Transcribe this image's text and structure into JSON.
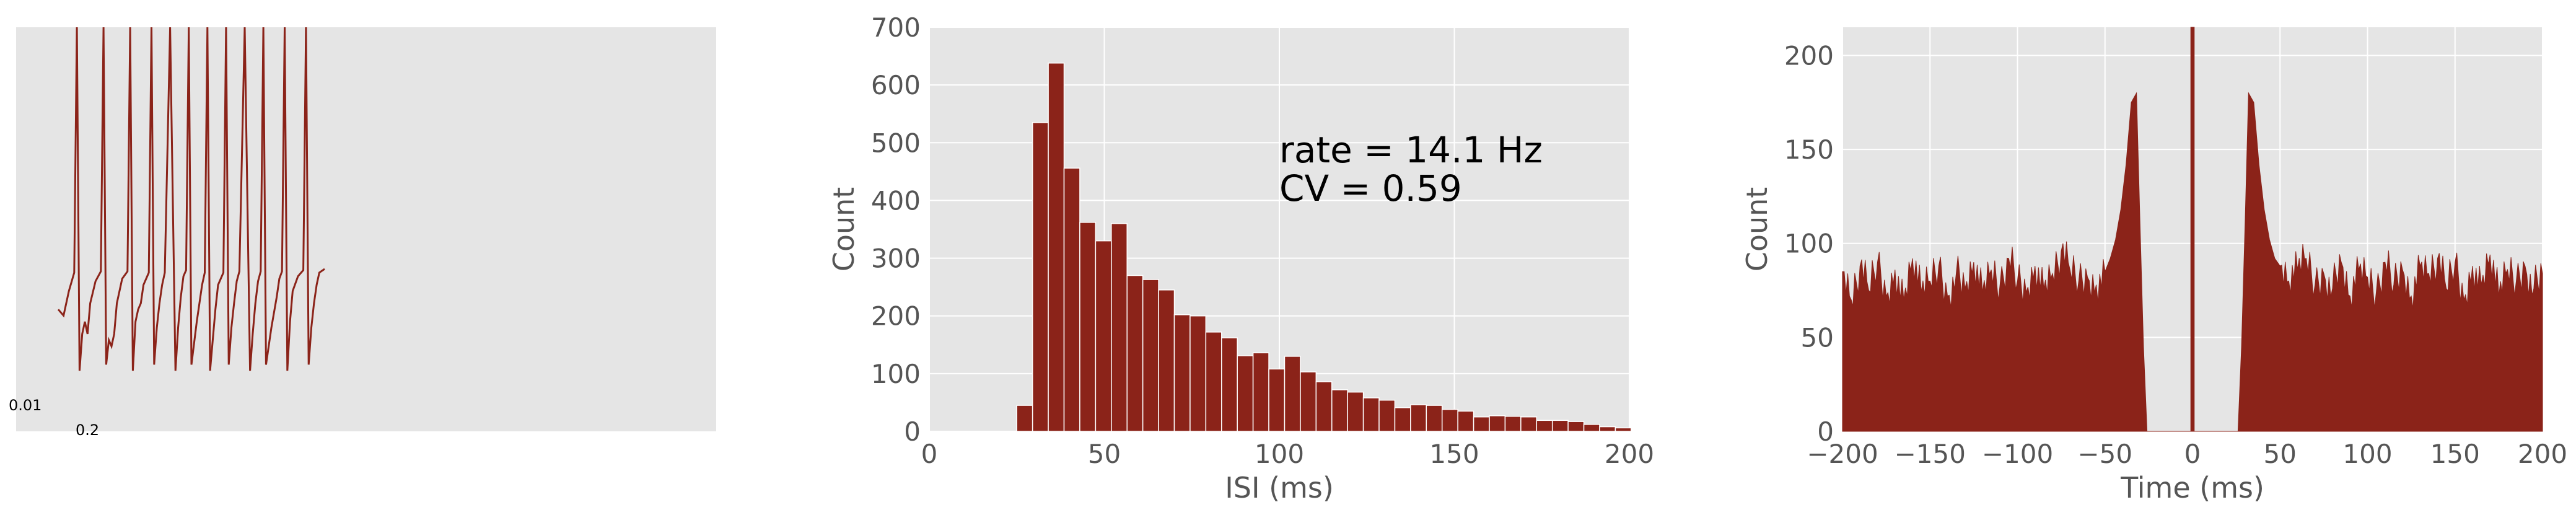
{
  "colors": {
    "series": "#8b2319",
    "panel_bg": "#e5e5e5",
    "grid": "#ffffff",
    "tick_text": "#555555"
  },
  "chart_data": [
    {
      "type": "line",
      "title": "",
      "xlabel": "",
      "ylabel": "",
      "grid": false,
      "scale_bar": {
        "y_label": "0.01",
        "x_label": "0.2"
      },
      "spike_count": 11,
      "trace": {
        "t": [
          0.0,
          0.02,
          0.04,
          0.06,
          0.07,
          0.08,
          0.09,
          0.1,
          0.11,
          0.12,
          0.14,
          0.16,
          0.17,
          0.18,
          0.19,
          0.2,
          0.21,
          0.22,
          0.24,
          0.26,
          0.27,
          0.28,
          0.29,
          0.3,
          0.31,
          0.32,
          0.34,
          0.35,
          0.36,
          0.37,
          0.38,
          0.39,
          0.4,
          0.42,
          0.44,
          0.45,
          0.46,
          0.47,
          0.48,
          0.49,
          0.5,
          0.52,
          0.54,
          0.55,
          0.56,
          0.57,
          0.58,
          0.59,
          0.6,
          0.62,
          0.63,
          0.64,
          0.65,
          0.66,
          0.67,
          0.68,
          0.7,
          0.72,
          0.73,
          0.74,
          0.75,
          0.76,
          0.77,
          0.78,
          0.8,
          0.82,
          0.83,
          0.84,
          0.85,
          0.86,
          0.87,
          0.88,
          0.9,
          0.92,
          0.93,
          0.94,
          0.95,
          0.96,
          0.97,
          0.98,
          1.0
        ],
        "v": [
          -0.35,
          -0.4,
          -0.2,
          -0.05,
          1.0,
          -0.85,
          -0.55,
          -0.45,
          -0.55,
          -0.3,
          -0.12,
          -0.04,
          1.0,
          -0.8,
          -0.6,
          -0.65,
          -0.55,
          -0.3,
          -0.1,
          -0.04,
          1.0,
          -0.85,
          -0.45,
          -0.35,
          -0.3,
          -0.15,
          -0.05,
          1.0,
          -0.8,
          -0.5,
          -0.3,
          -0.15,
          -0.05,
          1.0,
          -0.85,
          -0.5,
          -0.25,
          -0.08,
          -0.03,
          1.0,
          -0.8,
          -0.45,
          -0.15,
          -0.05,
          1.0,
          -0.85,
          -0.6,
          -0.35,
          -0.15,
          -0.05,
          1.0,
          -0.8,
          -0.5,
          -0.3,
          -0.12,
          -0.04,
          1.0,
          -0.85,
          -0.55,
          -0.3,
          -0.12,
          -0.04,
          1.0,
          -0.8,
          -0.5,
          -0.25,
          -0.1,
          -0.04,
          1.0,
          -0.85,
          -0.45,
          -0.2,
          -0.08,
          -0.03,
          1.0,
          -0.8,
          -0.5,
          -0.3,
          -0.15,
          -0.05,
          -0.02
        ]
      }
    },
    {
      "type": "bar",
      "title": "",
      "xlabel": "ISI (ms)",
      "ylabel": "Count",
      "xlim": [
        0,
        200
      ],
      "ylim": [
        0,
        700
      ],
      "xticks": [
        0,
        50,
        100,
        150,
        200
      ],
      "yticks": [
        0,
        100,
        200,
        300,
        400,
        500,
        600,
        700
      ],
      "grid": true,
      "bin_width": 4.5,
      "bin_start": 25,
      "values": [
        45,
        535,
        638,
        456,
        362,
        330,
        360,
        270,
        263,
        245,
        202,
        200,
        172,
        162,
        131,
        136,
        108,
        130,
        103,
        86,
        72,
        68,
        58,
        54,
        41,
        46,
        45,
        38,
        35,
        25,
        27,
        26,
        25,
        19,
        19,
        17,
        12,
        8,
        6
      ],
      "annotation": [
        "rate = 14.1 Hz",
        "CV = 0.59"
      ]
    },
    {
      "type": "area",
      "title": "",
      "xlabel": "Time (ms)",
      "ylabel": "Count",
      "xlim": [
        -200,
        200
      ],
      "ylim": [
        0,
        215
      ],
      "xticks": [
        -200,
        -150,
        -100,
        -50,
        0,
        50,
        100,
        150,
        200
      ],
      "yticks": [
        0,
        50,
        100,
        150,
        200
      ],
      "grid": true,
      "x": [
        -200,
        -195,
        -190,
        -185,
        -180,
        -175,
        -170,
        -165,
        -160,
        -155,
        -150,
        -145,
        -140,
        -135,
        -130,
        -125,
        -120,
        -115,
        -110,
        -105,
        -100,
        -95,
        -90,
        -85,
        -80,
        -75,
        -70,
        -65,
        -60,
        -55,
        -50,
        -47,
        -44,
        -41,
        -38,
        -35,
        -32,
        -30,
        -28,
        -26,
        -1,
        -1,
        1,
        1,
        26,
        28,
        30,
        32,
        35,
        38,
        41,
        44,
        47,
        50,
        55,
        60,
        65,
        70,
        75,
        80,
        85,
        90,
        95,
        100,
        105,
        110,
        115,
        120,
        125,
        130,
        135,
        140,
        145,
        150,
        155,
        160,
        165,
        170,
        175,
        180,
        185,
        190,
        195,
        200
      ],
      "values": [
        85,
        70,
        88,
        75,
        90,
        72,
        86,
        70,
        92,
        74,
        80,
        88,
        72,
        84,
        76,
        90,
        74,
        86,
        78,
        92,
        80,
        74,
        88,
        76,
        84,
        96,
        86,
        80,
        82,
        78,
        85,
        92,
        102,
        118,
        142,
        175,
        180,
        110,
        45,
        0,
        0,
        230,
        230,
        0,
        0,
        45,
        110,
        180,
        175,
        142,
        118,
        102,
        92,
        88,
        80,
        86,
        92,
        78,
        84,
        76,
        90,
        72,
        86,
        82,
        74,
        90,
        78,
        86,
        72,
        88,
        84,
        92,
        76,
        90,
        70,
        88,
        78,
        94,
        72,
        86,
        80,
        88,
        76,
        84
      ]
    }
  ]
}
